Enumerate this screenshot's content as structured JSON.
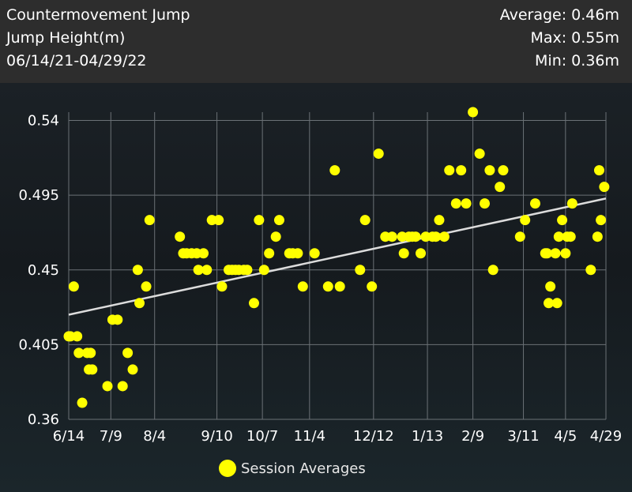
{
  "header": {
    "title": "Countermovement Jump",
    "metric": "Jump Height(m)",
    "date_range": "06/14/21-04/29/22",
    "average": "Average: 0.46m",
    "max": "Max: 0.55m",
    "min": "Min: 0.36m"
  },
  "colors": {
    "point": "#ffff00",
    "trend": "#dcdcdc",
    "grid": "#6b7176",
    "header_bg": "#2d2d2d"
  },
  "chart_data": {
    "type": "scatter",
    "title": "",
    "xlabel": "",
    "ylabel": "",
    "x_axis": "dates",
    "x_ticks": [
      "6/14",
      "7/9",
      "8/4",
      "9/10",
      "10/7",
      "11/4",
      "12/12",
      "1/13",
      "2/9",
      "3/11",
      "4/5",
      "4/29"
    ],
    "y_ticks": [
      "0.36",
      "0.405",
      "0.45",
      "0.495",
      "0.54"
    ],
    "ylim": [
      0.36,
      0.545
    ],
    "xlim": [
      "2021-06-14",
      "2022-04-29"
    ],
    "grid": true,
    "legend": {
      "position": "bottom-center",
      "entries": [
        "Session Averages"
      ]
    },
    "trendline": {
      "start": [
        "2021-06-14",
        0.423
      ],
      "end": [
        "2022-04-29",
        0.493
      ]
    },
    "series": [
      {
        "name": "Session Averages",
        "points": [
          [
            "2021-06-14",
            0.41
          ],
          [
            "2021-06-15",
            0.41
          ],
          [
            "2021-06-17",
            0.44
          ],
          [
            "2021-06-19",
            0.41
          ],
          [
            "2021-06-20",
            0.4
          ],
          [
            "2021-06-22",
            0.37
          ],
          [
            "2021-06-25",
            0.4
          ],
          [
            "2021-06-26",
            0.39
          ],
          [
            "2021-06-27",
            0.4
          ],
          [
            "2021-06-28",
            0.39
          ],
          [
            "2021-07-07",
            0.38
          ],
          [
            "2021-07-10",
            0.42
          ],
          [
            "2021-07-13",
            0.42
          ],
          [
            "2021-07-16",
            0.38
          ],
          [
            "2021-07-19",
            0.4
          ],
          [
            "2021-07-22",
            0.39
          ],
          [
            "2021-07-25",
            0.45
          ],
          [
            "2021-07-26",
            0.43
          ],
          [
            "2021-07-30",
            0.44
          ],
          [
            "2021-08-01",
            0.48
          ],
          [
            "2021-08-19",
            0.47
          ],
          [
            "2021-08-21",
            0.46
          ],
          [
            "2021-08-23",
            0.46
          ],
          [
            "2021-08-26",
            0.46
          ],
          [
            "2021-08-29",
            0.46
          ],
          [
            "2021-08-30",
            0.45
          ],
          [
            "2021-09-02",
            0.46
          ],
          [
            "2021-09-04",
            0.45
          ],
          [
            "2021-09-07",
            0.48
          ],
          [
            "2021-09-11",
            0.48
          ],
          [
            "2021-09-13",
            0.44
          ],
          [
            "2021-09-17",
            0.45
          ],
          [
            "2021-09-19",
            0.45
          ],
          [
            "2021-09-21",
            0.45
          ],
          [
            "2021-09-23",
            0.45
          ],
          [
            "2021-09-26",
            0.45
          ],
          [
            "2021-09-28",
            0.45
          ],
          [
            "2021-10-02",
            0.43
          ],
          [
            "2021-10-05",
            0.48
          ],
          [
            "2021-10-08",
            0.45
          ],
          [
            "2021-10-11",
            0.46
          ],
          [
            "2021-10-15",
            0.47
          ],
          [
            "2021-10-17",
            0.48
          ],
          [
            "2021-10-23",
            0.46
          ],
          [
            "2021-10-25",
            0.46
          ],
          [
            "2021-10-28",
            0.46
          ],
          [
            "2021-10-31",
            0.44
          ],
          [
            "2021-11-07",
            0.46
          ],
          [
            "2021-11-15",
            0.44
          ],
          [
            "2021-11-19",
            0.51
          ],
          [
            "2021-11-22",
            0.44
          ],
          [
            "2021-12-04",
            0.45
          ],
          [
            "2021-12-07",
            0.48
          ],
          [
            "2021-12-11",
            0.44
          ],
          [
            "2021-12-15",
            0.52
          ],
          [
            "2021-12-19",
            0.47
          ],
          [
            "2021-12-23",
            0.47
          ],
          [
            "2021-12-29",
            0.47
          ],
          [
            "2021-12-30",
            0.46
          ],
          [
            "2022-01-02",
            0.47
          ],
          [
            "2022-01-04",
            0.47
          ],
          [
            "2022-01-06",
            0.47
          ],
          [
            "2022-01-09",
            0.46
          ],
          [
            "2022-01-12",
            0.47
          ],
          [
            "2022-01-16",
            0.47
          ],
          [
            "2022-01-18",
            0.47
          ],
          [
            "2022-01-20",
            0.48
          ],
          [
            "2022-01-23",
            0.47
          ],
          [
            "2022-01-26",
            0.51
          ],
          [
            "2022-01-30",
            0.49
          ],
          [
            "2022-02-02",
            0.51
          ],
          [
            "2022-02-05",
            0.49
          ],
          [
            "2022-02-09",
            0.545
          ],
          [
            "2022-02-13",
            0.52
          ],
          [
            "2022-02-16",
            0.49
          ],
          [
            "2022-02-19",
            0.51
          ],
          [
            "2022-02-21",
            0.45
          ],
          [
            "2022-02-25",
            0.5
          ],
          [
            "2022-02-27",
            0.51
          ],
          [
            "2022-03-09",
            0.47
          ],
          [
            "2022-03-12",
            0.48
          ],
          [
            "2022-03-18",
            0.49
          ],
          [
            "2022-03-24",
            0.46
          ],
          [
            "2022-03-25",
            0.46
          ],
          [
            "2022-03-26",
            0.43
          ],
          [
            "2022-03-27",
            0.44
          ],
          [
            "2022-03-30",
            0.46
          ],
          [
            "2022-03-31",
            0.43
          ],
          [
            "2022-04-01",
            0.47
          ],
          [
            "2022-04-03",
            0.48
          ],
          [
            "2022-04-05",
            0.46
          ],
          [
            "2022-04-06",
            0.47
          ],
          [
            "2022-04-08",
            0.47
          ],
          [
            "2022-04-09",
            0.49
          ],
          [
            "2022-04-20",
            0.45
          ],
          [
            "2022-04-24",
            0.47
          ],
          [
            "2022-04-25",
            0.51
          ],
          [
            "2022-04-26",
            0.48
          ],
          [
            "2022-04-28",
            0.5
          ]
        ]
      }
    ]
  }
}
